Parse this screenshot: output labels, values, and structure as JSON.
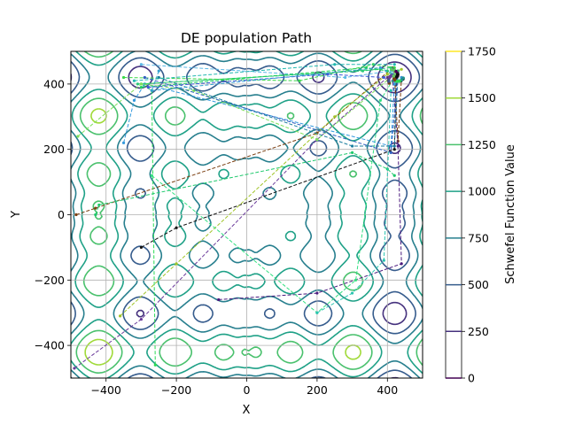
{
  "chart_data": {
    "type": "contour",
    "title": "DE population Path",
    "xlabel": "X",
    "ylabel": "Y",
    "xlim": [
      -500,
      500
    ],
    "ylim": [
      -500,
      500
    ],
    "grid": true,
    "x_ticks": [
      -400,
      -200,
      0,
      200,
      400
    ],
    "y_ticks": [
      -400,
      -200,
      0,
      200,
      400
    ],
    "x_tick_labels": [
      "−400",
      "−200",
      "0",
      "200",
      "400"
    ],
    "y_tick_labels": [
      "−400",
      "−200",
      "0",
      "200",
      "400"
    ],
    "colorbar": {
      "label": "Schwefel Function Value",
      "min": 0,
      "max": 1750,
      "ticks": [
        0,
        250,
        500,
        750,
        1000,
        1250,
        1500,
        1750
      ],
      "tick_labels": [
        "0",
        "250",
        "500",
        "750",
        "1000",
        "1250",
        "1500",
        "1750"
      ],
      "levels": [
        0,
        250,
        500,
        750,
        1000,
        1250,
        1500,
        1750
      ],
      "colors": [
        "#440154",
        "#46327e",
        "#365c8d",
        "#277f8e",
        "#1fa187",
        "#4ac16d",
        "#a0da39",
        "#fde725"
      ]
    },
    "contour_levels": [
      250,
      500,
      750,
      1000,
      1250,
      1500
    ],
    "paths": [
      {
        "color": "#7b3f12",
        "points": [
          [
            -485,
            0
          ],
          [
            -430,
            20
          ],
          [
            200,
            250
          ],
          [
            415,
            450
          ],
          [
            420,
            430
          ],
          [
            430,
            225
          ],
          [
            440,
            420
          ]
        ]
      },
      {
        "color": "#111111",
        "points": [
          [
            -300,
            -100
          ],
          [
            -200,
            -40
          ],
          [
            420,
            200
          ],
          [
            425,
            410
          ],
          [
            430,
            430
          ]
        ]
      },
      {
        "color": "#6a3a9a",
        "points": [
          [
            -490,
            -470
          ],
          [
            -300,
            -320
          ],
          [
            200,
            230
          ],
          [
            400,
            420
          ],
          [
            420,
            440
          ]
        ]
      },
      {
        "color": "#4b1a7e",
        "points": [
          [
            -80,
            -260
          ],
          [
            200,
            -240
          ],
          [
            440,
            -150
          ],
          [
            430,
            210
          ],
          [
            415,
            410
          ],
          [
            430,
            440
          ]
        ]
      },
      {
        "color": "#a0c428",
        "points": [
          [
            -360,
            -310
          ],
          [
            -200,
            -150
          ],
          [
            250,
            300
          ],
          [
            400,
            430
          ],
          [
            440,
            445
          ]
        ]
      },
      {
        "color": "#2adb55",
        "points": [
          [
            -260,
            -460
          ],
          [
            -270,
            380
          ],
          [
            -300,
            400
          ],
          [
            380,
            445
          ],
          [
            420,
            430
          ]
        ]
      },
      {
        "color": "#32e080",
        "points": [
          [
            -270,
            120
          ],
          [
            200,
            -300
          ],
          [
            310,
            -200
          ],
          [
            380,
            350
          ],
          [
            420,
            420
          ]
        ]
      },
      {
        "color": "#3399dd",
        "points": [
          [
            -350,
            220
          ],
          [
            -320,
            350
          ],
          [
            -290,
            400
          ],
          [
            410,
            210
          ],
          [
            420,
            400
          ],
          [
            440,
            420
          ]
        ]
      },
      {
        "color": "#5ab8e6",
        "points": [
          [
            -300,
            460
          ],
          [
            280,
            420
          ],
          [
            410,
            440
          ],
          [
            430,
            430
          ]
        ]
      },
      {
        "color": "#2cc87a",
        "points": [
          [
            -310,
            400
          ],
          [
            330,
            440
          ],
          [
            410,
            450
          ],
          [
            430,
            440
          ]
        ]
      },
      {
        "color": "#20d060",
        "points": [
          [
            -300,
            390
          ],
          [
            340,
            450
          ],
          [
            400,
            440
          ],
          [
            425,
            420
          ]
        ]
      },
      {
        "color": "#1ec96c",
        "points": [
          [
            -430,
            0
          ],
          [
            -420,
            30
          ],
          [
            300,
            190
          ],
          [
            400,
            140
          ],
          [
            420,
            120
          ]
        ]
      },
      {
        "color": "#3bd848",
        "points": [
          [
            -350,
            420
          ],
          [
            150,
            410
          ],
          [
            360,
            460
          ],
          [
            420,
            450
          ]
        ]
      },
      {
        "color": "#7de05a",
        "points": [
          [
            -480,
            240
          ],
          [
            -300,
            400
          ],
          [
            -150,
            380
          ],
          [
            200,
            230
          ],
          [
            420,
            430
          ]
        ]
      },
      {
        "color": "#1c7fa0",
        "points": [
          [
            -250,
            420
          ],
          [
            300,
            210
          ],
          [
            420,
            210
          ],
          [
            430,
            430
          ]
        ]
      },
      {
        "color": "#3e5ad8",
        "points": [
          [
            -280,
            390
          ],
          [
            230,
            430
          ],
          [
            390,
            420
          ],
          [
            420,
            410
          ]
        ]
      },
      {
        "color": "#22b8b0",
        "points": [
          [
            -320,
            410
          ],
          [
            250,
            460
          ],
          [
            420,
            460
          ]
        ]
      },
      {
        "color": "#35a0d0",
        "points": [
          [
            -250,
            440
          ],
          [
            -270,
            380
          ],
          [
            380,
            450
          ],
          [
            415,
            430
          ]
        ]
      },
      {
        "color": "#3060c0",
        "points": [
          [
            -290,
            420
          ],
          [
            410,
            190
          ],
          [
            430,
            430
          ]
        ]
      },
      {
        "color": "#2ac4b0",
        "points": [
          [
            200,
            -300
          ],
          [
            300,
            -240
          ],
          [
            390,
            -140
          ],
          [
            410,
            380
          ]
        ]
      }
    ],
    "final_cluster_center": [
      421,
      421
    ]
  }
}
